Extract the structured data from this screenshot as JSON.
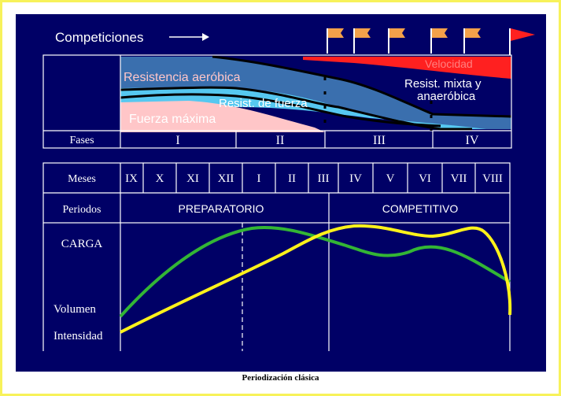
{
  "header": {
    "competiciones_label": "Competiciones"
  },
  "phases_section": {
    "row_label": "Fases",
    "phases": [
      "I",
      "II",
      "III",
      "IV"
    ],
    "qualities": {
      "resistencia": "Resistencia aeróbica",
      "fuerza_resist": "Resist. de fuerza",
      "fuerza_max": "Fuerza máxima",
      "velocidad": "Velocidad",
      "mixta_1": "Resist. mixta y",
      "mixta_2": "anaeróbica"
    }
  },
  "months_section": {
    "row_label": "Meses",
    "months": [
      "IX",
      "X",
      "XI",
      "XII",
      "I",
      "II",
      "III",
      "IV",
      "V",
      "VI",
      "VII",
      "VIII"
    ],
    "periods_label": "Periodos",
    "periods": [
      "PREPARATORIO",
      "COMPETITIVO"
    ]
  },
  "load_section": {
    "carga_label": "CARGA",
    "volumen_label": "Volumen",
    "intensidad_label": "Intensidad",
    "colors": {
      "volumen": "#33b535",
      "intensidad": "#fff21a"
    }
  },
  "colors": {
    "background": "#000066",
    "grid": "#ffffff",
    "resistencia": "#3a6fae",
    "fuerza_resist": "#56c8f0",
    "fuerza_max": "#ffc6c8",
    "velocidad": "#ff2020",
    "flag": "#f3a14a",
    "final_flag": "#ff2020"
  },
  "caption": "Periodización clásica"
}
